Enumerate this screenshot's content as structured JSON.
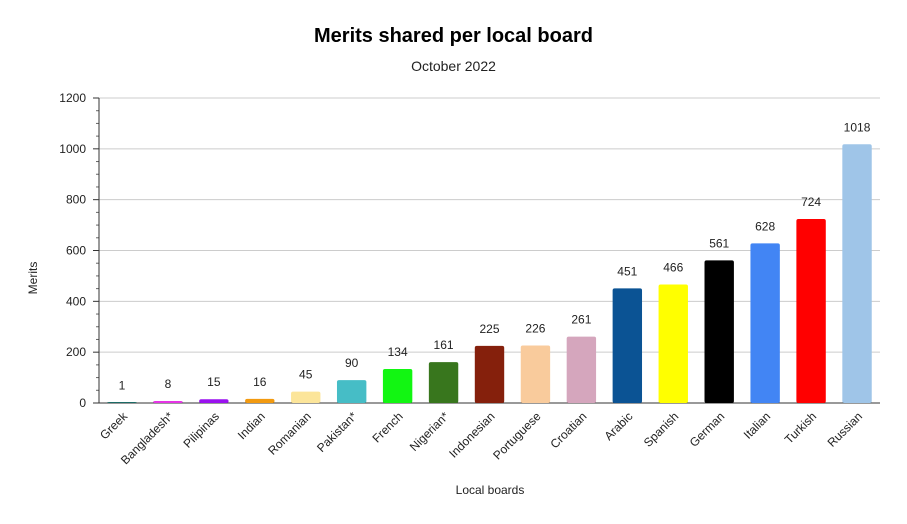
{
  "chart_data": {
    "type": "bar",
    "title": "Merits shared per local board",
    "subtitle": "October 2022",
    "xlabel": "Local boards",
    "ylabel": "Merits",
    "ylim": [
      0,
      1200
    ],
    "yticks": [
      0,
      200,
      400,
      600,
      800,
      1000,
      1200
    ],
    "grid": true,
    "categories": [
      "Greek",
      "Bangladesh*",
      "Pilipinas",
      "Indian",
      "Romanian",
      "Pakistan*",
      "French",
      "Nigerian*",
      "Indonesian",
      "Portuguese",
      "Croatian",
      "Arabic",
      "Spanish",
      "German",
      "Italian",
      "Turkish",
      "Russian"
    ],
    "values": [
      1,
      8,
      15,
      16,
      45,
      90,
      134,
      161,
      225,
      226,
      261,
      451,
      466,
      561,
      628,
      724,
      1018
    ],
    "colors": [
      "#1c6b66",
      "#e534e5",
      "#9a11ef",
      "#f29a10",
      "#fce59a",
      "#46bdc6",
      "#12f612",
      "#38761d",
      "#85200c",
      "#f9cb9c",
      "#d5a6bd",
      "#0b5394",
      "#ffff00",
      "#000000",
      "#4285f4",
      "#ff0000",
      "#9fc5e8"
    ]
  }
}
